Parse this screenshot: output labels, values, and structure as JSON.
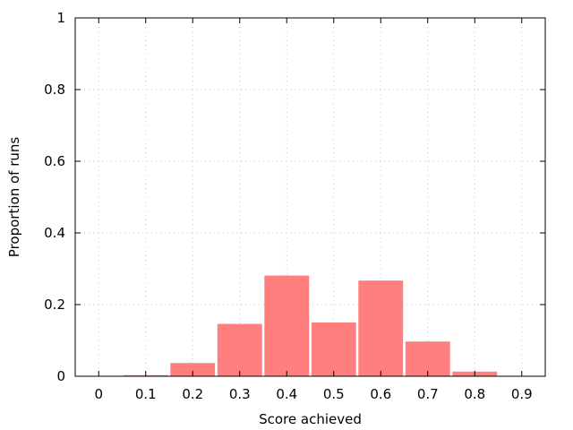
{
  "chart_data": {
    "type": "bar",
    "xlabel": "Score achieved",
    "ylabel": "Proportion of runs",
    "xlim": [
      -0.05,
      0.95
    ],
    "ylim": [
      0,
      1
    ],
    "x_ticks": [
      "0",
      "0.1",
      "0.2",
      "0.3",
      "0.4",
      "0.5",
      "0.6",
      "0.7",
      "0.8",
      "0.9"
    ],
    "y_ticks": [
      "0",
      "0.2",
      "0.4",
      "0.6",
      "0.8",
      "1"
    ],
    "bar_width": 0.095,
    "x": [
      0.1,
      0.2,
      0.3,
      0.4,
      0.5,
      0.6,
      0.7,
      0.8
    ],
    "values": [
      0.003,
      0.037,
      0.146,
      0.281,
      0.15,
      0.267,
      0.097,
      0.013
    ],
    "grid": true,
    "bar_color": "#ff7f7f"
  }
}
